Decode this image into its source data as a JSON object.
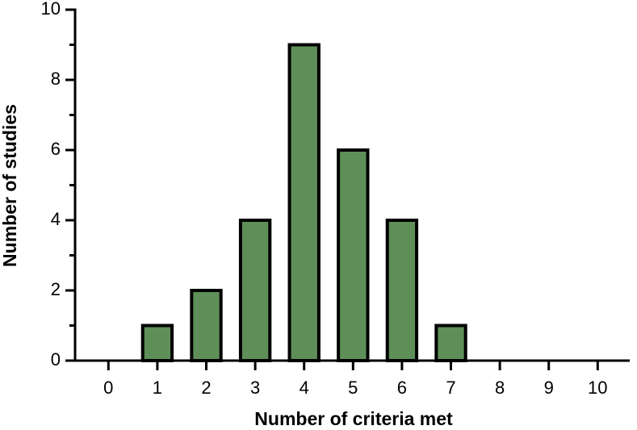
{
  "chart_data": {
    "type": "bar",
    "x_label": "Number of criteria met",
    "y_label": "Number of studies",
    "categories": [
      "0",
      "1",
      "2",
      "3",
      "4",
      "5",
      "6",
      "7",
      "8",
      "9",
      "10"
    ],
    "values": [
      0,
      1,
      2,
      4,
      9,
      6,
      4,
      1,
      0,
      0,
      0
    ],
    "color": "#5f8f58",
    "ylim": [
      0,
      10
    ],
    "yticks": [
      0,
      2,
      4,
      6,
      8,
      10
    ],
    "yminor_ticks": [
      1,
      3,
      5,
      7,
      9
    ],
    "grid": false
  }
}
